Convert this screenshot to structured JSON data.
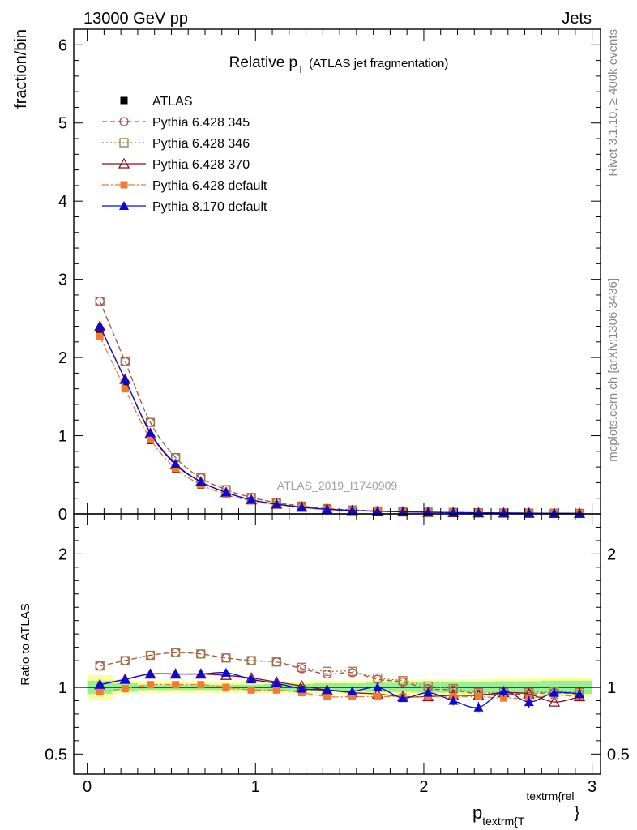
{
  "header": {
    "left": "13000 GeV pp",
    "right": "Jets"
  },
  "side_labels": {
    "rivet": "Rivet 3.1.10, ≥ 400k events",
    "mcplots": "mcplots.cern.ch [arXiv:1306.3436]"
  },
  "chart_data": [
    {
      "type": "line",
      "panel": "main",
      "title": "Relative p_T (ATLAS jet fragmentation)",
      "title_main": "Relative p",
      "title_sub": "T",
      "title_extra": "(ATLAS jet fragmentation)",
      "ylabel": "fraction/bin",
      "watermark": "ATLAS_2019_I1740909",
      "xlim": [
        -0.08,
        3.05
      ],
      "ylim": [
        0,
        6.2
      ],
      "yticks": [
        "0",
        "1",
        "2",
        "3",
        "4",
        "5",
        "6"
      ],
      "legend_position": "top-left",
      "x": [
        0.075,
        0.225,
        0.375,
        0.525,
        0.675,
        0.825,
        0.975,
        1.125,
        1.275,
        1.425,
        1.575,
        1.725,
        1.875,
        2.025,
        2.175,
        2.325,
        2.475,
        2.625,
        2.775,
        2.925
      ],
      "series": [
        {
          "name": "ATLAS",
          "color": "#000000",
          "values": [
            2.35,
            1.62,
            0.94,
            0.57,
            0.37,
            0.25,
            0.17,
            0.12,
            0.085,
            0.06,
            0.045,
            0.035,
            0.028,
            0.022,
            0.018,
            0.015,
            0.012,
            0.01,
            0.008,
            0.007
          ]
        },
        {
          "name": "Pythia 6.428 345",
          "color": "#b44646",
          "values": [
            2.72,
            1.95,
            1.17,
            0.72,
            0.46,
            0.31,
            0.21,
            0.145,
            0.1,
            0.068,
            0.05,
            0.037,
            0.029,
            0.022,
            0.018,
            0.014,
            0.011,
            0.0095,
            0.0078,
            0.0067
          ]
        },
        {
          "name": "Pythia 6.428 346",
          "color": "#9c7a48",
          "values": [
            2.72,
            1.95,
            1.17,
            0.72,
            0.46,
            0.31,
            0.21,
            0.145,
            0.1,
            0.068,
            0.05,
            0.037,
            0.029,
            0.022,
            0.018,
            0.014,
            0.011,
            0.0095,
            0.0078,
            0.0067
          ]
        },
        {
          "name": "Pythia 6.428 370",
          "color": "#8b0f1e",
          "values": [
            2.4,
            1.72,
            1.03,
            0.63,
            0.41,
            0.275,
            0.18,
            0.125,
            0.086,
            0.059,
            0.043,
            0.033,
            0.026,
            0.0205,
            0.017,
            0.014,
            0.0115,
            0.0095,
            0.0071,
            0.0065
          ]
        },
        {
          "name": "Pythia 6.428 default",
          "color": "#f47a30",
          "values": [
            2.27,
            1.6,
            0.96,
            0.58,
            0.375,
            0.25,
            0.165,
            0.118,
            0.082,
            0.056,
            0.042,
            0.033,
            0.026,
            0.0205,
            0.017,
            0.014,
            0.011,
            0.0092,
            0.0075,
            0.0065
          ]
        },
        {
          "name": "Pythia 8.170 default",
          "color": "#0a0ad6",
          "values": [
            2.4,
            1.72,
            1.04,
            0.64,
            0.41,
            0.275,
            0.18,
            0.125,
            0.085,
            0.059,
            0.043,
            0.035,
            0.026,
            0.0212,
            0.0163,
            0.0128,
            0.0117,
            0.0088,
            0.0077,
            0.0066
          ]
        }
      ]
    },
    {
      "type": "line",
      "panel": "ratio",
      "ylabel": "Ratio to ATLAS",
      "xlabel": "p",
      "xlabel_sub": "textrm{T",
      "xlabel_sup": "textrm{rel",
      "xlabel_close": "}",
      "xlim": [
        -0.08,
        3.05
      ],
      "ylim": [
        0.35,
        2.3
      ],
      "xticks": [
        "0",
        "1",
        "2",
        "3"
      ],
      "yticks": [
        "0.5",
        "1",
        "2"
      ],
      "band_inner": [
        0.05,
        0.03,
        0.02,
        0.02,
        0.02,
        0.02,
        0.02,
        0.025,
        0.025,
        0.03,
        0.03,
        0.035,
        0.035,
        0.04,
        0.04,
        0.04,
        0.045,
        0.045,
        0.05,
        0.05
      ],
      "band_outer": [
        0.09,
        0.05,
        0.04,
        0.04,
        0.04,
        0.04,
        0.04,
        0.045,
        0.045,
        0.05,
        0.05,
        0.055,
        0.055,
        0.06,
        0.06,
        0.06,
        0.065,
        0.065,
        0.07,
        0.07
      ],
      "x": [
        0.075,
        0.225,
        0.375,
        0.525,
        0.675,
        0.825,
        0.975,
        1.125,
        1.275,
        1.425,
        1.575,
        1.725,
        1.875,
        2.025,
        2.175,
        2.325,
        2.475,
        2.625,
        2.775,
        2.925
      ],
      "series": [
        {
          "name": "Pythia 6.428 345",
          "color": "#b44646",
          "values": [
            1.16,
            1.2,
            1.24,
            1.26,
            1.25,
            1.22,
            1.2,
            1.19,
            1.14,
            1.1,
            1.11,
            1.06,
            1.04,
            0.99,
            0.98,
            0.95,
            0.95,
            0.95,
            0.96,
            0.95
          ]
        },
        {
          "name": "Pythia 6.428 346",
          "color": "#9c7a48",
          "values": [
            1.16,
            1.2,
            1.24,
            1.26,
            1.25,
            1.22,
            1.2,
            1.19,
            1.15,
            1.12,
            1.12,
            1.07,
            1.05,
            1.01,
            0.99,
            0.96,
            0.96,
            0.96,
            0.97,
            0.96
          ]
        },
        {
          "name": "Pythia 6.428 370",
          "color": "#8b0f1e",
          "values": [
            1.02,
            1.06,
            1.1,
            1.1,
            1.1,
            1.09,
            1.07,
            1.04,
            1.01,
            0.98,
            0.96,
            0.95,
            0.93,
            0.93,
            0.94,
            0.94,
            0.96,
            0.95,
            0.89,
            0.93
          ]
        },
        {
          "name": "Pythia 6.428 default",
          "color": "#f47a30",
          "values": [
            0.97,
            0.99,
            1.02,
            1.02,
            1.02,
            1.0,
            0.98,
            0.98,
            0.96,
            0.93,
            0.93,
            0.93,
            0.93,
            0.93,
            0.93,
            0.93,
            0.92,
            0.92,
            0.94,
            0.93
          ]
        },
        {
          "name": "Pythia 8.170 default",
          "color": "#0a0ad6",
          "values": [
            1.02,
            1.06,
            1.1,
            1.1,
            1.1,
            1.11,
            1.06,
            1.03,
            0.99,
            0.98,
            0.97,
            1.0,
            0.92,
            0.96,
            0.9,
            0.85,
            0.97,
            0.89,
            0.96,
            0.95
          ],
          "errors": [
            0.01,
            0.01,
            0.01,
            0.01,
            0.01,
            0.01,
            0.015,
            0.015,
            0.02,
            0.02,
            0.02,
            0.025,
            0.025,
            0.03,
            0.035,
            0.04,
            0.04,
            0.045,
            0.045,
            0.05
          ]
        }
      ]
    }
  ]
}
